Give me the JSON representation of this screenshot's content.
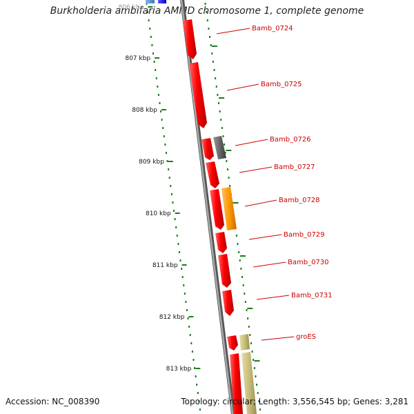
{
  "title": "Burkholderia ambifaria AMMD chromosome 1, complete genome",
  "footer": {
    "accession": "Accession: NC_008390",
    "stats": "Topology: circular; Length: 3,556,545 bp; Genes: 3,281"
  },
  "colors": {
    "backbone": "#8a8a8a",
    "gene_red": "#ff0000",
    "gene_gray": "#6b6b6b",
    "gene_orange": "#ff9900",
    "gene_tan": "#c8bd7a",
    "gene_blue": "#0000ff",
    "gene_lightblue": "#5b8fd6",
    "tick": "#1a7a1a",
    "label": "#cc0000"
  },
  "ticks": [
    {
      "label": "806 kbp"
    },
    {
      "label": "807 kbp"
    },
    {
      "label": "808 kbp"
    },
    {
      "label": "809 kbp"
    },
    {
      "label": "810 kbp"
    },
    {
      "label": "811 kbp"
    },
    {
      "label": "812 kbp"
    },
    {
      "label": "813 kbp"
    }
  ],
  "gene_labels": [
    {
      "name": "Bamb_0724"
    },
    {
      "name": "Bamb_0725"
    },
    {
      "name": "Bamb_0726"
    },
    {
      "name": "Bamb_0727"
    },
    {
      "name": "Bamb_0728"
    },
    {
      "name": "Bamb_0729"
    },
    {
      "name": "Bamb_0730"
    },
    {
      "name": "Bamb_0731"
    },
    {
      "name": "groES"
    }
  ]
}
